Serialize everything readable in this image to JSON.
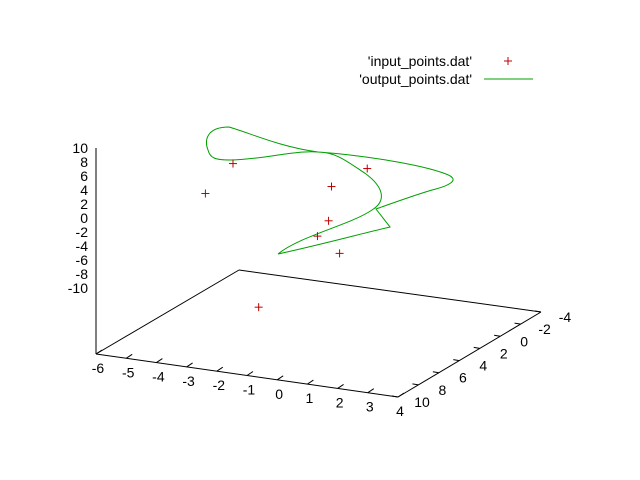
{
  "chart_data": {
    "type": "scatter",
    "style": "3d",
    "series": [
      {
        "name": "'input_points.dat'",
        "marker": "plus",
        "color": "#c00000",
        "points": [
          {
            "x": -2.1,
            "y": -2.0,
            "z": 11.6
          },
          {
            "x": -2.0,
            "y": 1.0,
            "z": 10.0
          },
          {
            "x": 1.5,
            "y": -1.0,
            "z": 11.4
          },
          {
            "x": 1.4,
            "y": -4.8,
            "z": 10.6
          },
          {
            "x": 1.2,
            "y": -1.6,
            "z": 5.8
          },
          {
            "x": 0.9,
            "y": -1.4,
            "z": 3.6
          },
          {
            "x": 0.0,
            "y": 1.7,
            "z": -4.4
          },
          {
            "x": 1.7,
            "y": -1.2,
            "z": 1.8
          }
        ]
      },
      {
        "name": "'output_points.dat'",
        "line": "solid",
        "color": "#00a000"
      }
    ],
    "x_axis": {
      "range": [
        -6,
        4
      ],
      "ticks": [
        "-6",
        "-5",
        "-4",
        "-3",
        "-2",
        "-1",
        "0",
        "1",
        "2",
        "3",
        "4"
      ]
    },
    "y_axis": {
      "range": [
        -4,
        10
      ],
      "ticks": [
        "-4",
        "-2",
        "0",
        "2",
        "4",
        "6",
        "8",
        "10"
      ]
    },
    "z_axis": {
      "range": [
        -10,
        10
      ],
      "ticks": [
        "10",
        "8",
        "6",
        "4",
        "2",
        "0",
        "-2",
        "-4",
        "-6",
        "-8",
        "-10"
      ]
    },
    "legend_position": "top-right",
    "grid": false
  }
}
